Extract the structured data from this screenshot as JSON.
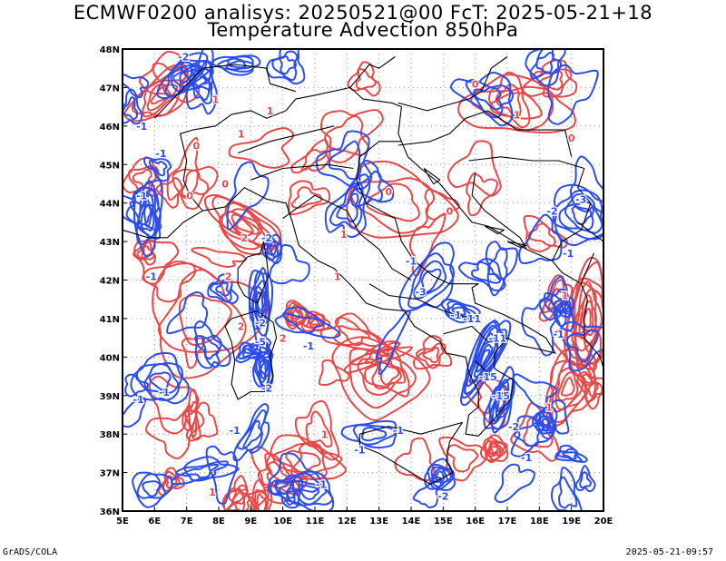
{
  "title": {
    "line1": "ECMWF0200 analisys: 20250521@00 FcT: 2025-05-21+18",
    "line2": "Temperature Advection 850hPa"
  },
  "footer": {
    "left": "GrADS/COLA",
    "right": "2025-05-21-09:57"
  },
  "map": {
    "lon_range": [
      5,
      20
    ],
    "lat_range": [
      36,
      48
    ],
    "x_ticks": [
      "5E",
      "6E",
      "7E",
      "8E",
      "9E",
      "10E",
      "11E",
      "12E",
      "13E",
      "14E",
      "15E",
      "16E",
      "17E",
      "18E",
      "19E",
      "20E"
    ],
    "y_ticks": [
      "36N",
      "37N",
      "38N",
      "39N",
      "40N",
      "41N",
      "42N",
      "43N",
      "44N",
      "45N",
      "46N",
      "47N",
      "48N"
    ],
    "grid": "dotted",
    "colors": {
      "positive": "#e84848",
      "negative": "#2a4cf0",
      "coast": "#000000",
      "grid": "#9a9a9a"
    },
    "contour_labels": [
      {
        "text": "-1",
        "lon": 5.6,
        "lat": 45.9,
        "sign": "neg"
      },
      {
        "text": "-1",
        "lon": 6.2,
        "lat": 45.2,
        "sign": "neg"
      },
      {
        "text": "-2",
        "lon": 6.9,
        "lat": 47.7,
        "sign": "neg"
      },
      {
        "text": "-1",
        "lon": 5.6,
        "lat": 44.1,
        "sign": "neg"
      },
      {
        "text": "1",
        "lon": 7.9,
        "lat": 46.6,
        "sign": "pos"
      },
      {
        "text": "0",
        "lon": 7.3,
        "lat": 45.4,
        "sign": "pos"
      },
      {
        "text": "1",
        "lon": 8.7,
        "lat": 45.7,
        "sign": "pos"
      },
      {
        "text": "1",
        "lon": 9.6,
        "lat": 46.3,
        "sign": "pos"
      },
      {
        "text": "0",
        "lon": 8.2,
        "lat": 44.4,
        "sign": "pos"
      },
      {
        "text": "0",
        "lon": 7.1,
        "lat": 44.1,
        "sign": "pos"
      },
      {
        "text": "2",
        "lon": 8.8,
        "lat": 43.0,
        "sign": "pos"
      },
      {
        "text": "-2",
        "lon": 9.5,
        "lat": 43.0,
        "sign": "neg"
      },
      {
        "text": "2",
        "lon": 8.3,
        "lat": 42.0,
        "sign": "pos"
      },
      {
        "text": "-1",
        "lon": 5.9,
        "lat": 42.0,
        "sign": "neg"
      },
      {
        "text": "-2",
        "lon": 9.3,
        "lat": 40.8,
        "sign": "neg"
      },
      {
        "text": "-5",
        "lon": 9.3,
        "lat": 40.3,
        "sign": "neg"
      },
      {
        "text": "-2",
        "lon": 9.5,
        "lat": 39.1,
        "sign": "neg"
      },
      {
        "text": "-1",
        "lon": 6.3,
        "lat": 39.0,
        "sign": "neg"
      },
      {
        "text": "-1",
        "lon": 5.5,
        "lat": 38.8,
        "sign": "neg"
      },
      {
        "text": "2",
        "lon": 8.7,
        "lat": 40.7,
        "sign": "pos"
      },
      {
        "text": "2",
        "lon": 10.0,
        "lat": 40.4,
        "sign": "pos"
      },
      {
        "text": "-1",
        "lon": 10.8,
        "lat": 40.2,
        "sign": "neg"
      },
      {
        "text": "1",
        "lon": 11.7,
        "lat": 42.0,
        "sign": "pos"
      },
      {
        "text": "1",
        "lon": 11.9,
        "lat": 43.1,
        "sign": "pos"
      },
      {
        "text": "0",
        "lon": 13.3,
        "lat": 44.2,
        "sign": "pos"
      },
      {
        "text": "0",
        "lon": 15.2,
        "lat": 43.7,
        "sign": "pos"
      },
      {
        "text": "-1",
        "lon": 14.0,
        "lat": 42.4,
        "sign": "neg"
      },
      {
        "text": "-3",
        "lon": 14.3,
        "lat": 41.6,
        "sign": "neg"
      },
      {
        "text": "-1",
        "lon": 15.4,
        "lat": 41.0,
        "sign": "neg"
      },
      {
        "text": "-11",
        "lon": 15.9,
        "lat": 40.9,
        "sign": "neg"
      },
      {
        "text": "-11",
        "lon": 16.7,
        "lat": 40.4,
        "sign": "neg"
      },
      {
        "text": "-15",
        "lon": 16.4,
        "lat": 39.4,
        "sign": "neg"
      },
      {
        "text": "-15",
        "lon": 16.8,
        "lat": 38.9,
        "sign": "neg"
      },
      {
        "text": "-2",
        "lon": 17.2,
        "lat": 38.1,
        "sign": "neg"
      },
      {
        "text": "-1",
        "lon": 17.6,
        "lat": 37.3,
        "sign": "neg"
      },
      {
        "text": "-2",
        "lon": 15.0,
        "lat": 36.3,
        "sign": "neg"
      },
      {
        "text": "-1",
        "lon": 13.6,
        "lat": 38.0,
        "sign": "neg"
      },
      {
        "text": "-1",
        "lon": 12.4,
        "lat": 37.5,
        "sign": "neg"
      },
      {
        "text": "1",
        "lon": 11.3,
        "lat": 37.9,
        "sign": "pos"
      },
      {
        "text": "-1",
        "lon": 8.5,
        "lat": 38.0,
        "sign": "neg"
      },
      {
        "text": "1",
        "lon": 7.8,
        "lat": 36.4,
        "sign": "pos"
      },
      {
        "text": "-1",
        "lon": 11.2,
        "lat": 36.6,
        "sign": "neg"
      },
      {
        "text": "1",
        "lon": 18.3,
        "lat": 38.6,
        "sign": "pos"
      },
      {
        "text": "-1",
        "lon": 18.6,
        "lat": 40.5,
        "sign": "neg"
      },
      {
        "text": "-1",
        "lon": 18.9,
        "lat": 42.6,
        "sign": "neg"
      },
      {
        "text": "-2",
        "lon": 18.4,
        "lat": 43.7,
        "sign": "neg"
      },
      {
        "text": "-3",
        "lon": 19.3,
        "lat": 44.0,
        "sign": "neg"
      },
      {
        "text": "0",
        "lon": 19.0,
        "lat": 45.6,
        "sign": "pos"
      },
      {
        "text": "1",
        "lon": 17.3,
        "lat": 46.2,
        "sign": "pos"
      },
      {
        "text": "0",
        "lon": 16.0,
        "lat": 47.0,
        "sign": "pos"
      },
      {
        "text": "1",
        "lon": 18.8,
        "lat": 41.5,
        "sign": "pos"
      }
    ]
  }
}
